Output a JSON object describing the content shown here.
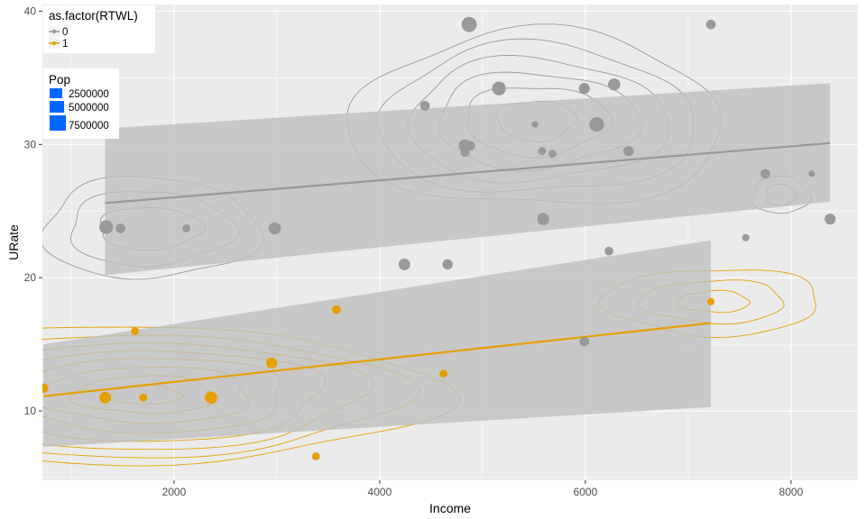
{
  "chart_data": {
    "type": "scatter",
    "xlabel": "Income",
    "ylabel": "URate",
    "xlim": [
      720,
      8650
    ],
    "ylim": [
      4.8,
      40.5
    ],
    "x_ticks": [
      2000,
      4000,
      6000,
      8000
    ],
    "y_ticks": [
      10,
      20,
      30,
      40
    ],
    "grid": true,
    "colors": {
      "group0": "#999999",
      "group1": "#E69F00",
      "ribbon": "#bfbfbf",
      "panel": "#ebebeb",
      "grid": "#ffffff",
      "pop_key": "#0066ff"
    },
    "legend_color": {
      "title": "as.factor(RTWL)",
      "placement": "top-left",
      "entries": [
        {
          "label": "0",
          "color": "#999999"
        },
        {
          "label": "1",
          "color": "#E69F00"
        }
      ]
    },
    "legend_size": {
      "title": "Pop",
      "placement": "top-left",
      "entries": [
        {
          "label": "2500000",
          "value": 2500000
        },
        {
          "label": "5000000",
          "value": 5000000
        },
        {
          "label": "7500000",
          "value": 7500000
        }
      ]
    },
    "series": [
      {
        "key": "group0",
        "points": [
          {
            "x": 4870,
            "y": 39.0,
            "pop": 7500000
          },
          {
            "x": 7220,
            "y": 39.0,
            "pop": 2500000
          },
          {
            "x": 5160,
            "y": 34.2,
            "pop": 6000000
          },
          {
            "x": 5990,
            "y": 34.2,
            "pop": 3500000
          },
          {
            "x": 6280,
            "y": 34.5,
            "pop": 4500000
          },
          {
            "x": 4440,
            "y": 32.9,
            "pop": 2500000
          },
          {
            "x": 6110,
            "y": 31.5,
            "pop": 7000000
          },
          {
            "x": 5510,
            "y": 31.5,
            "pop": 800000
          },
          {
            "x": 4830,
            "y": 29.9,
            "pop": 5000000
          },
          {
            "x": 4880,
            "y": 29.9,
            "pop": 2500000
          },
          {
            "x": 4830,
            "y": 29.4,
            "pop": 2000000
          },
          {
            "x": 5580,
            "y": 29.5,
            "pop": 1500000
          },
          {
            "x": 5680,
            "y": 29.3,
            "pop": 1500000
          },
          {
            "x": 6420,
            "y": 29.5,
            "pop": 3000000
          },
          {
            "x": 7750,
            "y": 27.8,
            "pop": 2500000
          },
          {
            "x": 8200,
            "y": 27.8,
            "pop": 800000
          },
          {
            "x": 1340,
            "y": 23.8,
            "pop": 6000000
          },
          {
            "x": 1480,
            "y": 23.7,
            "pop": 2500000
          },
          {
            "x": 2120,
            "y": 23.7,
            "pop": 1500000
          },
          {
            "x": 2980,
            "y": 23.7,
            "pop": 4500000
          },
          {
            "x": 5590,
            "y": 24.4,
            "pop": 4500000
          },
          {
            "x": 8380,
            "y": 24.4,
            "pop": 3500000
          },
          {
            "x": 7560,
            "y": 23.0,
            "pop": 1200000
          },
          {
            "x": 6230,
            "y": 22.0,
            "pop": 2000000
          },
          {
            "x": 4240,
            "y": 21.0,
            "pop": 4000000
          },
          {
            "x": 4660,
            "y": 21.0,
            "pop": 3000000
          },
          {
            "x": 5990,
            "y": 15.2,
            "pop": 2500000
          }
        ]
      },
      {
        "key": "group1",
        "points": [
          {
            "x": 730,
            "y": 11.7,
            "pop": 2500000
          },
          {
            "x": 1620,
            "y": 16.0,
            "pop": 1500000
          },
          {
            "x": 1330,
            "y": 11.0,
            "pop": 4000000
          },
          {
            "x": 1700,
            "y": 11.0,
            "pop": 1500000
          },
          {
            "x": 2360,
            "y": 11.0,
            "pop": 4500000
          },
          {
            "x": 2950,
            "y": 13.6,
            "pop": 3500000
          },
          {
            "x": 3580,
            "y": 17.6,
            "pop": 2000000
          },
          {
            "x": 4620,
            "y": 12.8,
            "pop": 1500000
          },
          {
            "x": 3380,
            "y": 6.6,
            "pop": 1500000
          },
          {
            "x": 7220,
            "y": 18.2,
            "pop": 1200000
          }
        ]
      }
    ],
    "fit_lines": [
      {
        "key": "group0",
        "x": [
          1330,
          8380
        ],
        "y": [
          25.6,
          30.1
        ],
        "band_upper": [
          31.2,
          34.6
        ],
        "band_lower": [
          20.2,
          25.7
        ]
      },
      {
        "key": "group1",
        "x": [
          730,
          7220
        ],
        "y": [
          11.1,
          16.6
        ],
        "band_upper": [
          15.0,
          22.8
        ],
        "band_lower": [
          7.3,
          10.3
        ]
      }
    ],
    "density_contours": [
      {
        "key": "group0",
        "cx": 5520,
        "cy": 31.8,
        "rx": [
          380,
          700,
          980,
          1260,
          1540,
          1820
        ],
        "ry": [
          1.5,
          2.6,
          3.6,
          4.6,
          5.6,
          6.6
        ]
      },
      {
        "key": "group0",
        "cx": 1760,
        "cy": 23.7,
        "rx": [
          500,
          800,
          1050
        ],
        "ry": [
          1.6,
          2.8,
          3.8
        ]
      },
      {
        "key": "group0",
        "cx": 7900,
        "cy": 26.2,
        "rx": [
          150,
          280
        ],
        "ry": [
          0.8,
          1.4
        ]
      },
      {
        "key": "group1",
        "cx": 1720,
        "cy": 11.2,
        "rx": [
          350,
          700,
          1050,
          1400,
          1750,
          2100,
          2450,
          2800
        ],
        "ry": [
          0.7,
          1.4,
          2.1,
          2.8,
          3.4,
          4.0,
          4.6,
          5.2
        ]
      },
      {
        "key": "group1",
        "cx": 7250,
        "cy": 18.2,
        "rx": [
          350,
          700,
          1050
        ],
        "ry": [
          0.8,
          1.6,
          2.5
        ]
      }
    ]
  }
}
